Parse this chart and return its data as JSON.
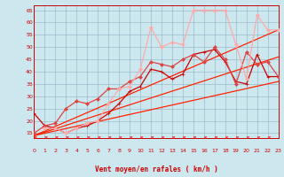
{
  "xlabel": "Vent moyen/en rafales ( km/h )",
  "bg_color": "#cce8ee",
  "grid_color": "#99bbcc",
  "xmin": 0,
  "xmax": 23,
  "ymin": 13,
  "ymax": 67,
  "yticks": [
    15,
    20,
    25,
    30,
    35,
    40,
    45,
    50,
    55,
    60,
    65
  ],
  "xticks": [
    0,
    1,
    2,
    3,
    4,
    5,
    6,
    7,
    8,
    9,
    10,
    11,
    12,
    13,
    14,
    15,
    16,
    17,
    18,
    19,
    20,
    21,
    22,
    23
  ],
  "lines": [
    {
      "x": [
        0,
        23
      ],
      "y": [
        14,
        36
      ],
      "color": "#ff2200",
      "lw": 0.9,
      "marker": null,
      "zorder": 3
    },
    {
      "x": [
        0,
        23
      ],
      "y": [
        14,
        46
      ],
      "color": "#ff2200",
      "lw": 0.9,
      "marker": null,
      "zorder": 3
    },
    {
      "x": [
        0,
        23
      ],
      "y": [
        14,
        57
      ],
      "color": "#ff2200",
      "lw": 0.9,
      "marker": null,
      "zorder": 3
    },
    {
      "x": [
        0,
        1,
        2,
        3,
        4,
        5,
        6,
        7,
        8,
        9,
        10,
        11,
        12,
        13,
        14,
        15,
        16,
        17,
        18,
        19,
        20,
        21,
        22,
        23
      ],
      "y": [
        23,
        18,
        17,
        15,
        17,
        18,
        20,
        23,
        27,
        32,
        34,
        41,
        40,
        37,
        39,
        47,
        48,
        49,
        44,
        36,
        35,
        47,
        38,
        38
      ],
      "color": "#cc0000",
      "lw": 0.9,
      "marker": "+",
      "ms": 3.5,
      "zorder": 4
    },
    {
      "x": [
        0,
        1,
        2,
        3,
        4,
        5,
        6,
        7,
        8,
        9,
        10,
        11,
        12,
        13,
        14,
        15,
        16,
        17,
        18,
        19,
        20,
        21,
        22,
        23
      ],
      "y": [
        15,
        18,
        19,
        25,
        28,
        27,
        29,
        33,
        33,
        36,
        38,
        44,
        43,
        42,
        45,
        47,
        44,
        50,
        45,
        35,
        48,
        43,
        44,
        38
      ],
      "color": "#dd4444",
      "lw": 0.9,
      "marker": "D",
      "ms": 2.0,
      "zorder": 4
    },
    {
      "x": [
        1,
        2,
        3,
        4,
        5,
        6,
        7,
        8,
        9,
        10,
        11,
        12,
        13,
        14,
        15,
        16,
        17,
        18,
        19,
        20,
        21,
        22,
        23
      ],
      "y": [
        17,
        17,
        15,
        17,
        19,
        20,
        27,
        33,
        34,
        41,
        58,
        50,
        52,
        51,
        65,
        65,
        65,
        65,
        51,
        37,
        63,
        57,
        57
      ],
      "color": "#ffaaaa",
      "lw": 0.9,
      "marker": "D",
      "ms": 2.0,
      "zorder": 4
    }
  ]
}
